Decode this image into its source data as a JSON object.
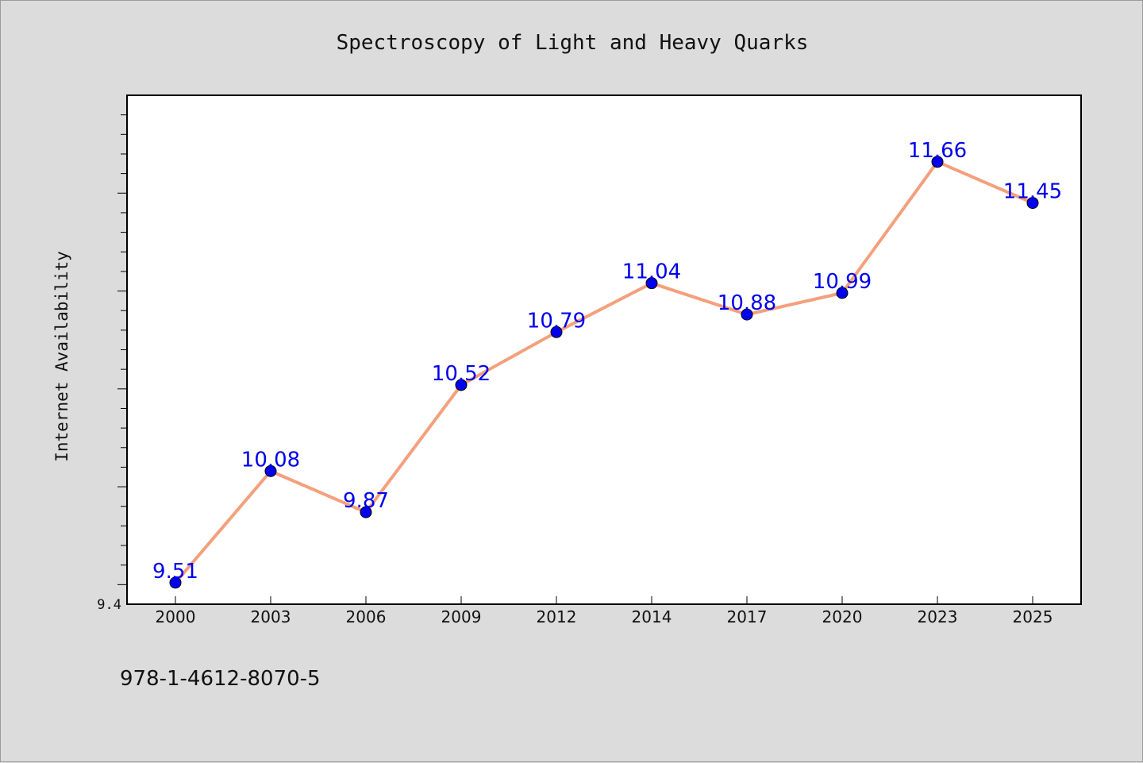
{
  "chart_data": {
    "type": "line",
    "title": "Spectroscopy of Light and Heavy Quarks",
    "ylabel": "Internet Availability",
    "xlabel": "",
    "categories": [
      "2000",
      "2003",
      "2006",
      "2009",
      "2012",
      "2014",
      "2017",
      "2020",
      "2023",
      "2025"
    ],
    "series": [
      {
        "values": [
          9.51,
          10.08,
          9.87,
          10.52,
          10.79,
          11.04,
          10.88,
          10.99,
          11.66,
          11.45
        ],
        "line_color": "#f4a07c",
        "marker_color": "#0000ee",
        "label_color": "#0000ee"
      }
    ],
    "ylim": [
      9.4,
      12.0
    ],
    "y_tick_labels": [
      "9.4"
    ],
    "grid": false,
    "legend": "none"
  },
  "footnote": "978-1-4612-8070-5"
}
